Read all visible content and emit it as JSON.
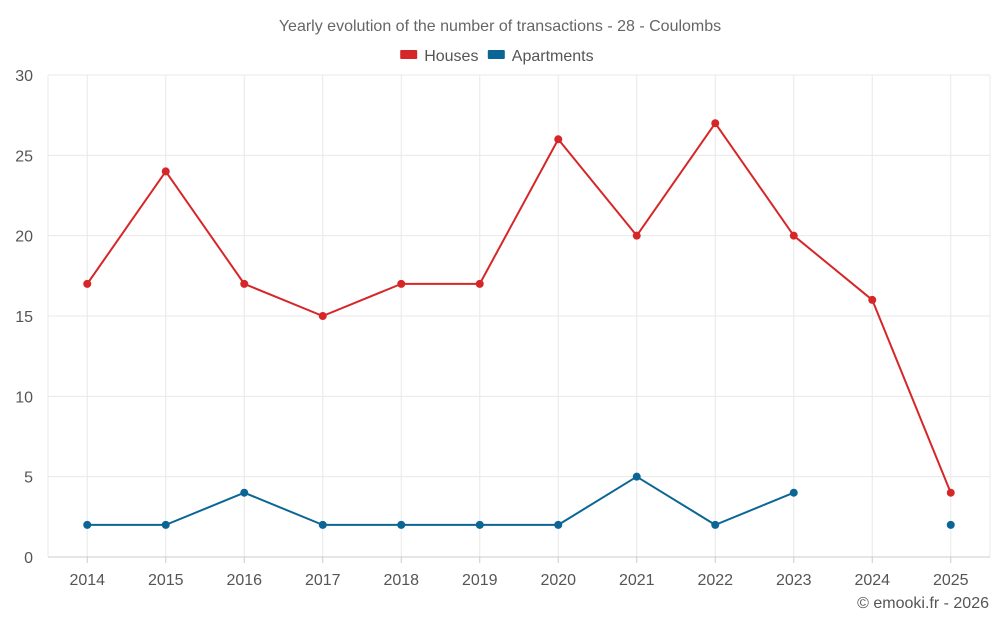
{
  "chart_data": {
    "type": "line",
    "title": "Yearly evolution of the number of transactions - 28 - Coulombs",
    "categories": [
      "2014",
      "2015",
      "2016",
      "2017",
      "2018",
      "2019",
      "2020",
      "2021",
      "2022",
      "2023",
      "2024",
      "2025"
    ],
    "series": [
      {
        "name": "Houses",
        "color": "#d62728",
        "values": [
          17,
          24,
          17,
          15,
          17,
          17,
          26,
          20,
          27,
          20,
          16,
          4
        ]
      },
      {
        "name": "Apartments",
        "color": "#0b6695",
        "values": [
          2,
          2,
          4,
          2,
          2,
          2,
          2,
          5,
          2,
          4,
          null,
          2
        ]
      }
    ],
    "ylim": [
      0,
      30
    ],
    "yticks": [
      0,
      5,
      10,
      15,
      20,
      25,
      30
    ],
    "xlabel": "",
    "ylabel": "",
    "grid": true,
    "legend": "top-center"
  },
  "footer": {
    "credit": "© emooki.fr - 2026"
  }
}
